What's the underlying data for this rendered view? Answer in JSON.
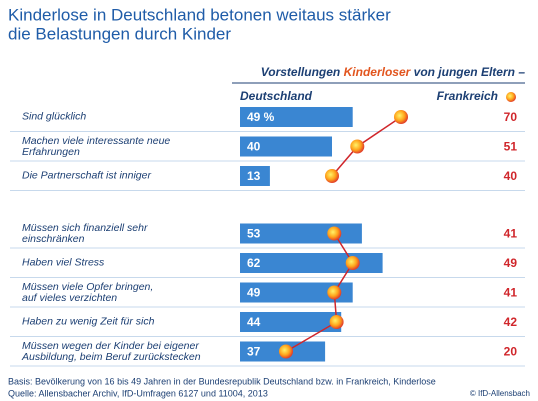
{
  "chart_data": {
    "type": "bar-dot",
    "title": [
      "Kinderlose in Deutschland betonen weitaus stärker",
      "die Belastungen durch Kinder"
    ],
    "subtitle": [
      "Vorstellungen",
      "Kinderloser",
      "von jungen Eltern –"
    ],
    "categories": [
      "Sind glücklich",
      "Machen viele interessante neue\nErfahrungen",
      "Die Partnerschaft ist inniger",
      "Müssen sich finanziell sehr\neinschränken",
      "Haben viel Stress",
      "Müssen viele Opfer bringen,\nauf vieles verzichten",
      "Haben zu wenig Zeit für sich",
      "Müssen wegen der Kinder bei eigener\nAusbildung, beim Beruf zurückstecken"
    ],
    "series": [
      {
        "name": "Deutschland",
        "color": "#3a86d2",
        "values": [
          49,
          40,
          13,
          53,
          62,
          49,
          44,
          37
        ],
        "value_labels": [
          "49 %",
          "40",
          "13",
          "53",
          "62",
          "49",
          "44",
          "37"
        ]
      },
      {
        "name": "Frankreich",
        "color": "#d0262b",
        "values": [
          70,
          51,
          40,
          41,
          49,
          41,
          42,
          20
        ]
      }
    ],
    "footnotes": [
      "Basis: Bevölkerung von 16 bis 49 Jahren in der Bundesrepublik Deutschland bzw. in Frankreich, Kinderlose",
      "Quelle: Allensbacher Archiv, IfD-Umfragen 6127 und 11004, 2013"
    ],
    "credit": "© IfD-Allensbach"
  }
}
